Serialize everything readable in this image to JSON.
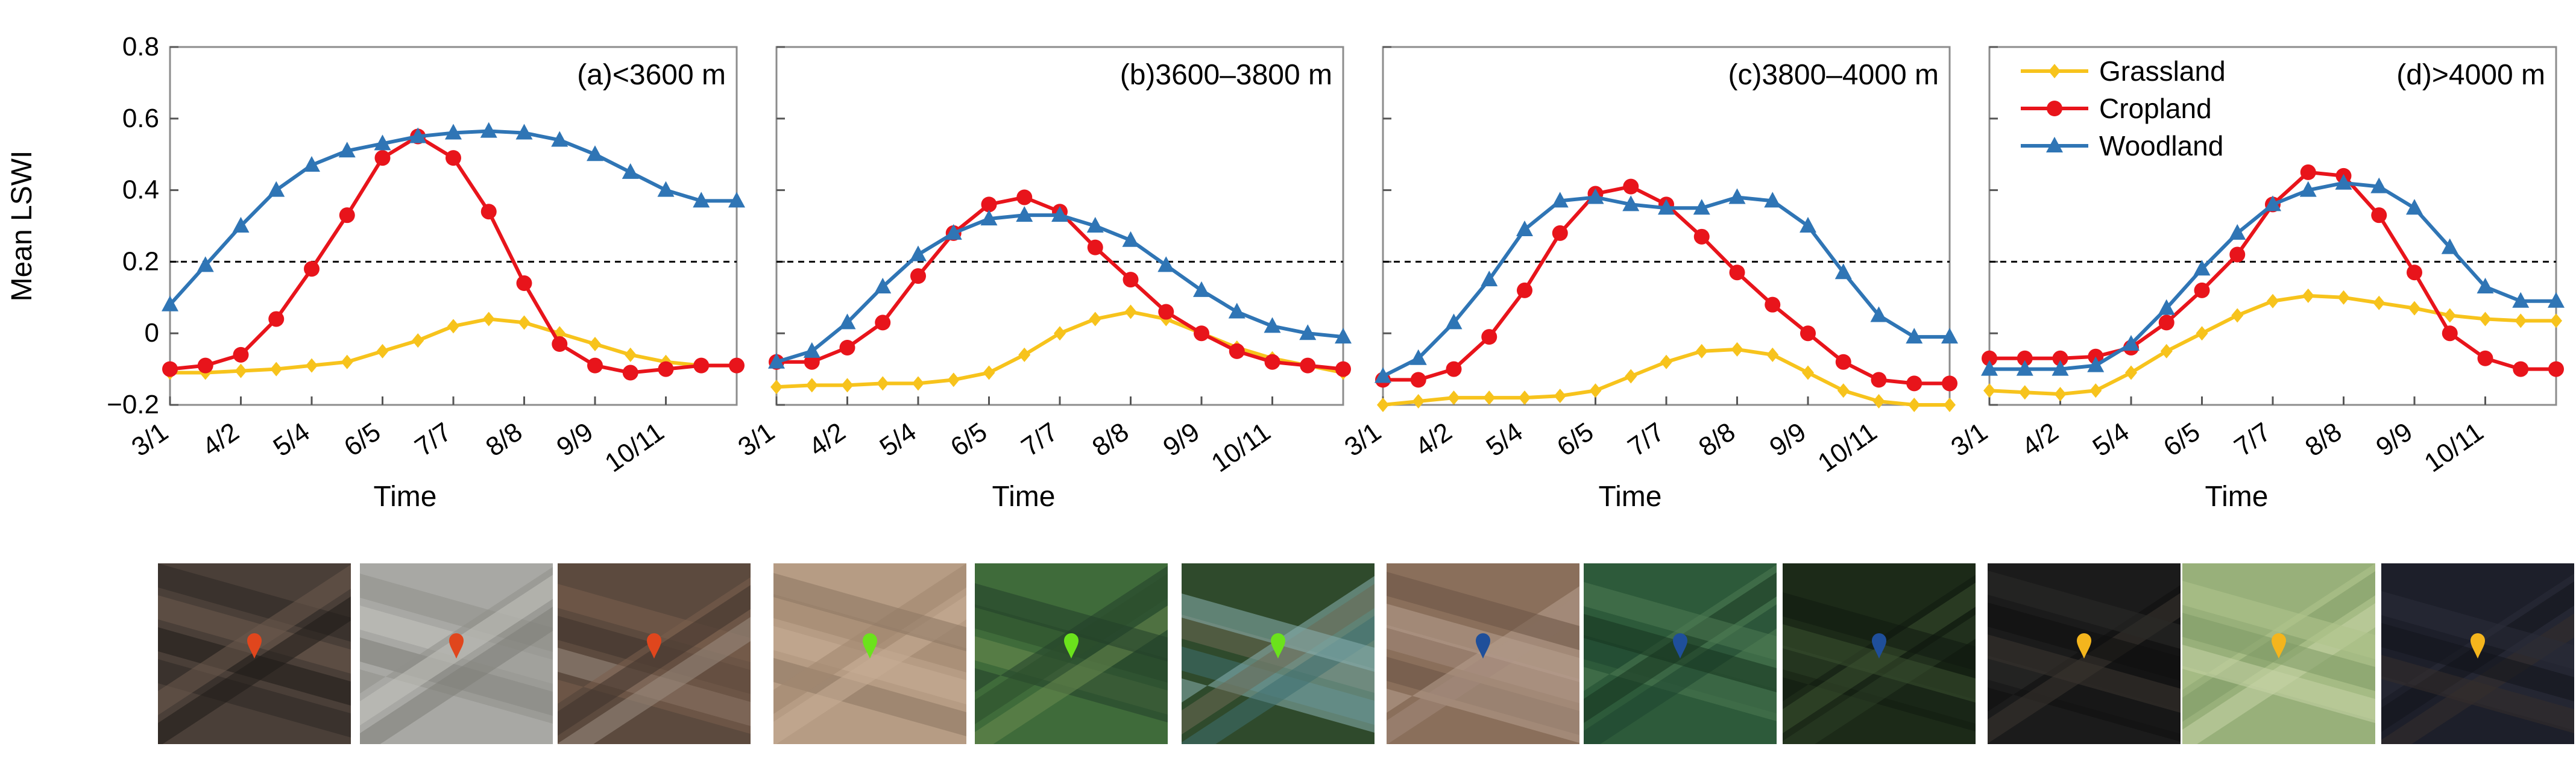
{
  "figure": {
    "ylabel": "Mean LSWI",
    "xlabel": "Time",
    "legend": [
      {
        "name": "Grassland",
        "color": "#F7C31C",
        "marker": "diamond"
      },
      {
        "name": "Cropland",
        "color": "#E8141B",
        "marker": "circle"
      },
      {
        "name": "Woodland",
        "color": "#2F75B5",
        "marker": "triangle"
      }
    ],
    "yticks": [
      "0.8",
      "0.6",
      "0.4",
      "0.2",
      "0",
      "−0.2"
    ],
    "xticks": [
      "3/1",
      "4/2",
      "5/4",
      "6/5",
      "7/7",
      "8/8",
      "9/9",
      "10/11"
    ]
  },
  "chart_data": [
    {
      "type": "line",
      "title": "(a)<3600 m",
      "xlabel": "Time",
      "ylabel": "Mean LSWI",
      "ylim": [
        -0.2,
        0.8
      ],
      "threshold": 0.2,
      "x_days": [
        0,
        16,
        32,
        48,
        64,
        80,
        96,
        112,
        128,
        144,
        160,
        176,
        192,
        208,
        224,
        240,
        256
      ],
      "x_tick_days": [
        0,
        32,
        64,
        96,
        128,
        160,
        192,
        224
      ],
      "series": [
        {
          "name": "Grassland",
          "values": [
            -0.11,
            -0.11,
            -0.105,
            -0.1,
            -0.09,
            -0.08,
            -0.05,
            -0.02,
            0.02,
            0.04,
            0.03,
            0.0,
            -0.03,
            -0.06,
            -0.08,
            -0.09,
            -0.09
          ]
        },
        {
          "name": "Cropland",
          "values": [
            -0.1,
            -0.09,
            -0.06,
            0.04,
            0.18,
            0.33,
            0.49,
            0.55,
            0.49,
            0.34,
            0.14,
            -0.03,
            -0.09,
            -0.11,
            -0.1,
            -0.09,
            -0.09
          ]
        },
        {
          "name": "Woodland",
          "values": [
            0.08,
            0.19,
            0.3,
            0.4,
            0.47,
            0.51,
            0.53,
            0.55,
            0.56,
            0.565,
            0.56,
            0.54,
            0.5,
            0.45,
            0.4,
            0.37,
            0.37
          ]
        }
      ]
    },
    {
      "type": "line",
      "title": "(b)3600–3800 m",
      "xlabel": "Time",
      "ylabel": "Mean LSWI",
      "ylim": [
        -0.2,
        0.8
      ],
      "threshold": 0.2,
      "x_days": [
        0,
        16,
        32,
        48,
        64,
        80,
        96,
        112,
        128,
        144,
        160,
        176,
        192,
        208,
        224,
        240,
        256
      ],
      "x_tick_days": [
        0,
        32,
        64,
        96,
        128,
        160,
        192,
        224
      ],
      "series": [
        {
          "name": "Grassland",
          "values": [
            -0.15,
            -0.145,
            -0.145,
            -0.14,
            -0.14,
            -0.13,
            -0.11,
            -0.06,
            0.0,
            0.04,
            0.06,
            0.04,
            0.0,
            -0.04,
            -0.07,
            -0.09,
            -0.11
          ]
        },
        {
          "name": "Cropland",
          "values": [
            -0.08,
            -0.08,
            -0.04,
            0.03,
            0.16,
            0.28,
            0.36,
            0.38,
            0.34,
            0.24,
            0.15,
            0.06,
            0.0,
            -0.05,
            -0.08,
            -0.09,
            -0.1
          ]
        },
        {
          "name": "Woodland",
          "values": [
            -0.08,
            -0.05,
            0.03,
            0.13,
            0.22,
            0.28,
            0.32,
            0.33,
            0.33,
            0.3,
            0.26,
            0.19,
            0.12,
            0.06,
            0.02,
            0.0,
            -0.01
          ]
        }
      ]
    },
    {
      "type": "line",
      "title": "(c)3800–4000 m",
      "xlabel": "Time",
      "ylabel": "Mean LSWI",
      "ylim": [
        -0.2,
        0.8
      ],
      "threshold": 0.2,
      "x_days": [
        0,
        16,
        32,
        48,
        64,
        80,
        96,
        112,
        128,
        144,
        160,
        176,
        192,
        208,
        224,
        240,
        256
      ],
      "x_tick_days": [
        0,
        32,
        64,
        96,
        128,
        160,
        192,
        224
      ],
      "series": [
        {
          "name": "Grassland",
          "values": [
            -0.2,
            -0.19,
            -0.18,
            -0.18,
            -0.18,
            -0.175,
            -0.16,
            -0.12,
            -0.08,
            -0.05,
            -0.045,
            -0.06,
            -0.11,
            -0.16,
            -0.19,
            -0.21,
            -0.21
          ]
        },
        {
          "name": "Cropland",
          "values": [
            -0.13,
            -0.13,
            -0.1,
            -0.01,
            0.12,
            0.28,
            0.39,
            0.41,
            0.36,
            0.27,
            0.17,
            0.08,
            0.0,
            -0.08,
            -0.13,
            -0.14,
            -0.14
          ]
        },
        {
          "name": "Woodland",
          "values": [
            -0.12,
            -0.07,
            0.03,
            0.15,
            0.29,
            0.37,
            0.38,
            0.36,
            0.35,
            0.35,
            0.38,
            0.37,
            0.3,
            0.17,
            0.05,
            -0.01,
            -0.01
          ]
        }
      ]
    },
    {
      "type": "line",
      "title": "(d)>4000 m",
      "xlabel": "Time",
      "ylabel": "Mean LSWI",
      "ylim": [
        -0.2,
        0.8
      ],
      "threshold": 0.2,
      "x_days": [
        0,
        16,
        32,
        48,
        64,
        80,
        96,
        112,
        128,
        144,
        160,
        176,
        192,
        208,
        224,
        240,
        256
      ],
      "x_tick_days": [
        0,
        32,
        64,
        96,
        128,
        160,
        192,
        224
      ],
      "series": [
        {
          "name": "Grassland",
          "values": [
            -0.16,
            -0.165,
            -0.17,
            -0.16,
            -0.11,
            -0.05,
            0.0,
            0.05,
            0.09,
            0.105,
            0.1,
            0.085,
            0.07,
            0.05,
            0.04,
            0.035,
            0.035
          ]
        },
        {
          "name": "Cropland",
          "values": [
            -0.07,
            -0.07,
            -0.07,
            -0.065,
            -0.04,
            0.03,
            0.12,
            0.22,
            0.36,
            0.45,
            0.44,
            0.33,
            0.17,
            0.0,
            -0.07,
            -0.1,
            -0.1
          ]
        },
        {
          "name": "Woodland",
          "values": [
            -0.1,
            -0.1,
            -0.1,
            -0.09,
            -0.03,
            0.07,
            0.18,
            0.28,
            0.36,
            0.4,
            0.42,
            0.41,
            0.35,
            0.24,
            0.13,
            0.09,
            0.09
          ]
        }
      ]
    }
  ],
  "thumbnails": [
    {
      "panel": "a",
      "land": "grassland",
      "style": "mountain-dark",
      "pin_color": "#E0461D"
    },
    {
      "panel": "a",
      "land": "cropland",
      "style": "gray-fields",
      "pin_color": "#E0461D"
    },
    {
      "panel": "a",
      "land": "woodland",
      "style": "forest-brown",
      "pin_color": "#E0461D"
    },
    {
      "panel": "b",
      "land": "grassland",
      "style": "desert-tan",
      "pin_color": "#6BE21C"
    },
    {
      "panel": "b",
      "land": "cropland",
      "style": "green-fields",
      "pin_color": "#6BE21C"
    },
    {
      "panel": "b",
      "land": "woodland",
      "style": "river-forest",
      "pin_color": "#6BE21C"
    },
    {
      "panel": "c",
      "land": "grassland",
      "style": "hill-brown",
      "pin_color": "#1F4F9A"
    },
    {
      "panel": "c",
      "land": "cropland",
      "style": "green-fields-dark",
      "pin_color": "#1F4F9A"
    },
    {
      "panel": "c",
      "land": "woodland",
      "style": "dark-forest",
      "pin_color": "#1F4F9A"
    },
    {
      "panel": "d",
      "land": "grassland",
      "style": "night-dark",
      "pin_color": "#F4B51D"
    },
    {
      "panel": "d",
      "land": "cropland",
      "style": "light-green-fields",
      "pin_color": "#F4B51D"
    },
    {
      "panel": "d",
      "land": "woodland",
      "style": "dark-navy",
      "pin_color": "#F4B51D"
    }
  ]
}
